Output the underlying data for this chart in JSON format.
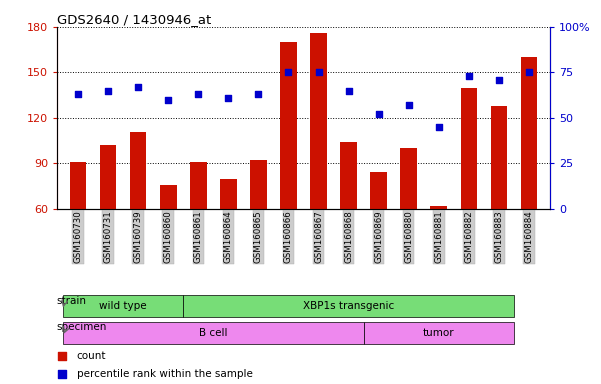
{
  "title": "GDS2640 / 1430946_at",
  "samples": [
    "GSM160730",
    "GSM160731",
    "GSM160739",
    "GSM160860",
    "GSM160861",
    "GSM160864",
    "GSM160865",
    "GSM160866",
    "GSM160867",
    "GSM160868",
    "GSM160869",
    "GSM160880",
    "GSM160881",
    "GSM160882",
    "GSM160883",
    "GSM160884"
  ],
  "counts": [
    91,
    102,
    111,
    76,
    91,
    80,
    92,
    170,
    176,
    104,
    84,
    100,
    62,
    140,
    128,
    160
  ],
  "percentiles": [
    63,
    65,
    67,
    60,
    63,
    61,
    63,
    75,
    75,
    65,
    52,
    57,
    45,
    73,
    71,
    75
  ],
  "ylim_left": [
    60,
    180
  ],
  "ylim_right": [
    0,
    100
  ],
  "yticks_left": [
    60,
    90,
    120,
    150,
    180
  ],
  "yticks_right": [
    0,
    25,
    50,
    75,
    100
  ],
  "strain_groups": [
    {
      "label": "wild type",
      "start": 0,
      "end": 4
    },
    {
      "label": "XBP1s transgenic",
      "start": 4,
      "end": 15
    }
  ],
  "specimen_groups": [
    {
      "label": "B cell",
      "start": 0,
      "end": 10
    },
    {
      "label": "tumor",
      "start": 10,
      "end": 15
    }
  ],
  "bar_color": "#cc1100",
  "dot_color": "#0000cc",
  "strain_color": "#77dd77",
  "specimen_color": "#ee88ee",
  "legend_count_label": "count",
  "legend_pct_label": "percentile rank within the sample",
  "left_axis_color": "#cc1100",
  "right_axis_color": "#0000cc"
}
